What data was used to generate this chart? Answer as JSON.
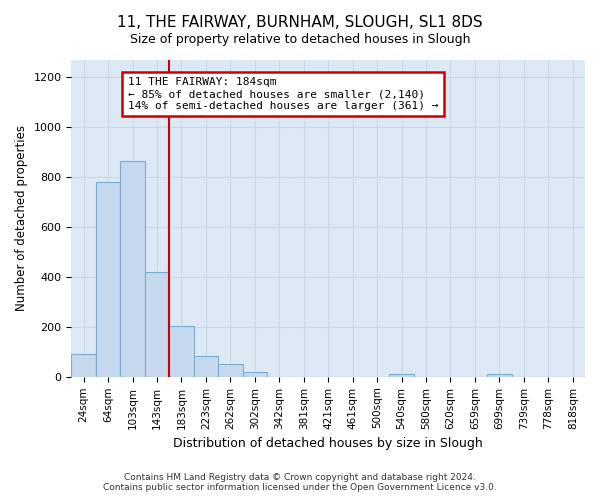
{
  "title": "11, THE FAIRWAY, BURNHAM, SLOUGH, SL1 8DS",
  "subtitle": "Size of property relative to detached houses in Slough",
  "xlabel": "Distribution of detached houses by size in Slough",
  "ylabel": "Number of detached properties",
  "categories": [
    "24sqm",
    "64sqm",
    "103sqm",
    "143sqm",
    "183sqm",
    "223sqm",
    "262sqm",
    "302sqm",
    "342sqm",
    "381sqm",
    "421sqm",
    "461sqm",
    "500sqm",
    "540sqm",
    "580sqm",
    "620sqm",
    "659sqm",
    "699sqm",
    "739sqm",
    "778sqm",
    "818sqm"
  ],
  "values": [
    90,
    780,
    865,
    420,
    205,
    83,
    52,
    20,
    0,
    0,
    0,
    0,
    0,
    12,
    0,
    0,
    0,
    12,
    0,
    0,
    0
  ],
  "bar_color": "#c5d8ed",
  "bar_edge_color": "#7aacd1",
  "property_line_x": 3.5,
  "property_label": "11 THE FAIRWAY: 184sqm",
  "annotation_line1": "← 85% of detached houses are smaller (2,140)",
  "annotation_line2": "14% of semi-detached houses are larger (361) →",
  "annotation_box_color": "#ffffff",
  "annotation_box_edge_color": "#cc0000",
  "property_line_color": "#cc0000",
  "ylim": [
    0,
    1270
  ],
  "yticks": [
    0,
    200,
    400,
    600,
    800,
    1000,
    1200
  ],
  "grid_color": "#c8d8e8",
  "bg_color": "#dce9f5",
  "footer_line1": "Contains HM Land Registry data © Crown copyright and database right 2024.",
  "footer_line2": "Contains public sector information licensed under the Open Government Licence v3.0."
}
